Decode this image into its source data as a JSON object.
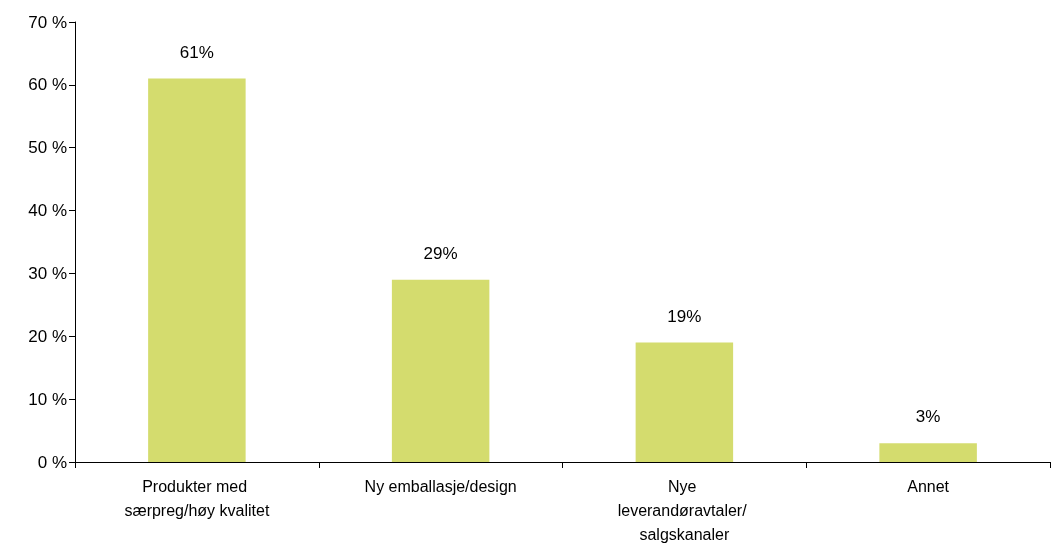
{
  "chart_data": {
    "type": "bar",
    "categories": [
      "Produkter med særpreg/høy kvalitet",
      "Ny emballasje/design",
      "Nye leverandøravtaler/ salgskanaler",
      "Annet"
    ],
    "values": [
      61,
      29,
      19,
      3
    ],
    "color": "#d4dc6e",
    "value_labels": [
      "61%",
      "29%",
      "19%",
      "3%"
    ],
    "ylim": [
      0,
      70
    ],
    "yticks": [
      {
        "value": 0,
        "label": "0 %"
      },
      {
        "value": 10,
        "label": "10 %"
      },
      {
        "value": 20,
        "label": "20 %"
      },
      {
        "value": 30,
        "label": "30 %"
      },
      {
        "value": 40,
        "label": "40 %"
      },
      {
        "value": 50,
        "label": "50 %"
      },
      {
        "value": 60,
        "label": "60 %"
      },
      {
        "value": 70,
        "label": "70 %"
      }
    ],
    "grid": false
  }
}
